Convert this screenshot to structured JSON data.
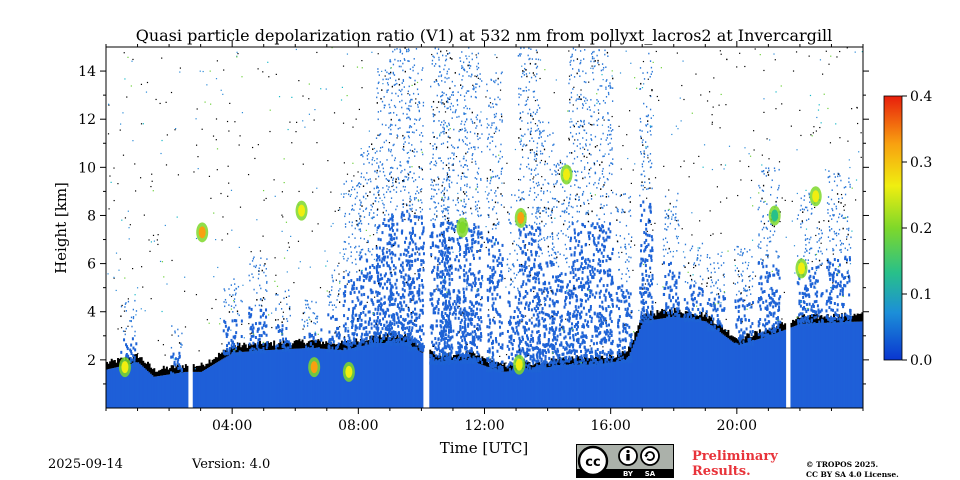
{
  "chart_data": {
    "type": "heatmap",
    "title": "Quasi particle depolarization ratio (V1) at 532 nm from pollyxt_lacros2 at Invercargill",
    "xlabel": "Time [UTC]",
    "ylabel": "Height [km]",
    "xlim_hours": [
      0,
      24
    ],
    "ylim_km": [
      0,
      15
    ],
    "x_ticks": [
      {
        "hour": 4,
        "label": "04:00"
      },
      {
        "hour": 8,
        "label": "08:00"
      },
      {
        "hour": 12,
        "label": "12:00"
      },
      {
        "hour": 16,
        "label": "16:00"
      },
      {
        "hour": 20,
        "label": "20:00"
      }
    ],
    "y_ticks": [
      {
        "value": 2,
        "label": "2"
      },
      {
        "value": 4,
        "label": "4"
      },
      {
        "value": 6,
        "label": "6"
      },
      {
        "value": 8,
        "label": "8"
      },
      {
        "value": 10,
        "label": "10"
      },
      {
        "value": 12,
        "label": "12"
      },
      {
        "value": 14,
        "label": "14"
      }
    ],
    "colorbar": {
      "range": [
        0.0,
        0.4
      ],
      "ticks": [
        {
          "value": 0.0,
          "label": "0.0"
        },
        {
          "value": 0.1,
          "label": "0.1"
        },
        {
          "value": 0.2,
          "label": "0.2"
        },
        {
          "value": 0.3,
          "label": "0.3"
        },
        {
          "value": 0.4,
          "label": "0.4"
        }
      ],
      "colormap": [
        "#0a36d0",
        "#1c8fd8",
        "#28c08a",
        "#7ed82a",
        "#f0ee10",
        "#f8a010",
        "#e81e0c"
      ]
    },
    "background_color": "#1e5fd8",
    "cloud_top_color": "#000000",
    "data_gaps_hours": [
      [
        2.55,
        2.7
      ],
      [
        10.05,
        10.25
      ],
      [
        21.55,
        21.7
      ]
    ],
    "boundary_layer_top_km": [
      [
        0.0,
        1.6
      ],
      [
        1.0,
        1.9
      ],
      [
        1.5,
        1.3
      ],
      [
        2.5,
        1.5
      ],
      [
        3.0,
        1.5
      ],
      [
        4.0,
        2.3
      ],
      [
        5.0,
        2.4
      ],
      [
        6.5,
        2.5
      ],
      [
        7.5,
        2.4
      ],
      [
        8.5,
        2.7
      ],
      [
        9.5,
        2.7
      ],
      [
        10.5,
        1.9
      ],
      [
        11.5,
        2.0
      ],
      [
        12.5,
        1.5
      ],
      [
        13.5,
        1.6
      ],
      [
        14.5,
        1.8
      ],
      [
        15.5,
        1.8
      ],
      [
        16.5,
        2.0
      ],
      [
        17.0,
        3.6
      ],
      [
        18.0,
        3.8
      ],
      [
        19.0,
        3.6
      ],
      [
        20.0,
        2.6
      ],
      [
        21.0,
        3.0
      ],
      [
        22.0,
        3.5
      ],
      [
        24.0,
        3.6
      ]
    ],
    "high_depolarization_features": [
      {
        "hour": 0.6,
        "height_km": 1.7,
        "value": 0.3
      },
      {
        "hour": 3.05,
        "height_km": 7.3,
        "value": 0.35
      },
      {
        "hour": 6.2,
        "height_km": 8.2,
        "value": 0.25
      },
      {
        "hour": 6.6,
        "height_km": 1.7,
        "value": 0.35
      },
      {
        "hour": 7.7,
        "height_km": 1.5,
        "value": 0.3
      },
      {
        "hour": 11.3,
        "height_km": 7.5,
        "value": 0.2
      },
      {
        "hour": 13.15,
        "height_km": 7.9,
        "value": 0.35
      },
      {
        "hour": 13.1,
        "height_km": 1.8,
        "value": 0.3
      },
      {
        "hour": 14.6,
        "height_km": 9.7,
        "value": 0.3
      },
      {
        "hour": 22.05,
        "height_km": 5.8,
        "value": 0.3
      },
      {
        "hour": 22.5,
        "height_km": 8.8,
        "value": 0.3
      },
      {
        "hour": 21.2,
        "height_km": 8.0,
        "value": 0.15
      }
    ]
  },
  "footer": {
    "date": "2025-09-14",
    "version": "Version: 4.0",
    "preliminary_line1": "Preliminary",
    "preliminary_line2": "Results.",
    "copyright_line1": "© TROPOS 2025.",
    "copyright_line2": "CC BY SA 4.0 License.",
    "cc_by": "BY",
    "cc_sa": "SA"
  }
}
